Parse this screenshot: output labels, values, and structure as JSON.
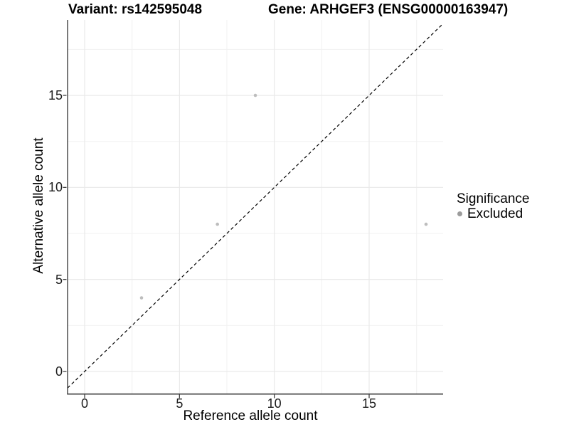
{
  "titles": {
    "left": "Variant: rs142595048",
    "right": "Gene: ARHGEF3 (ENSG00000163947)"
  },
  "chart_data": {
    "type": "scatter",
    "title": "",
    "xlabel": "Reference allele count",
    "ylabel": "Alternative allele count",
    "xlim": [
      -0.9,
      18.9
    ],
    "ylim": [
      -1.2,
      19.1
    ],
    "xticks": [
      0,
      5,
      10,
      15
    ],
    "yticks": [
      0,
      5,
      10,
      15
    ],
    "xminor": [
      2.5,
      7.5,
      12.5,
      17.5
    ],
    "yminor": [
      2.5,
      7.5,
      12.5,
      17.5
    ],
    "grid": "major+minor",
    "series": [
      {
        "name": "Excluded",
        "points": [
          [
            3,
            4
          ],
          [
            7,
            8
          ],
          [
            9,
            15
          ],
          [
            18,
            8
          ]
        ]
      }
    ],
    "reference_line": {
      "style": "dashed",
      "slope": 1,
      "intercept": 0
    },
    "legend": {
      "position": "right",
      "title": "Significance",
      "entries": [
        {
          "label": "Excluded"
        }
      ]
    }
  },
  "colors": {
    "point": "#bdbdbd",
    "legend_point": "#9c9c9c",
    "grid_major": "#e8e8e8",
    "grid_minor": "#f1f1f1",
    "axis": "#404040",
    "reference_line": "#000000",
    "background": "#ffffff"
  }
}
